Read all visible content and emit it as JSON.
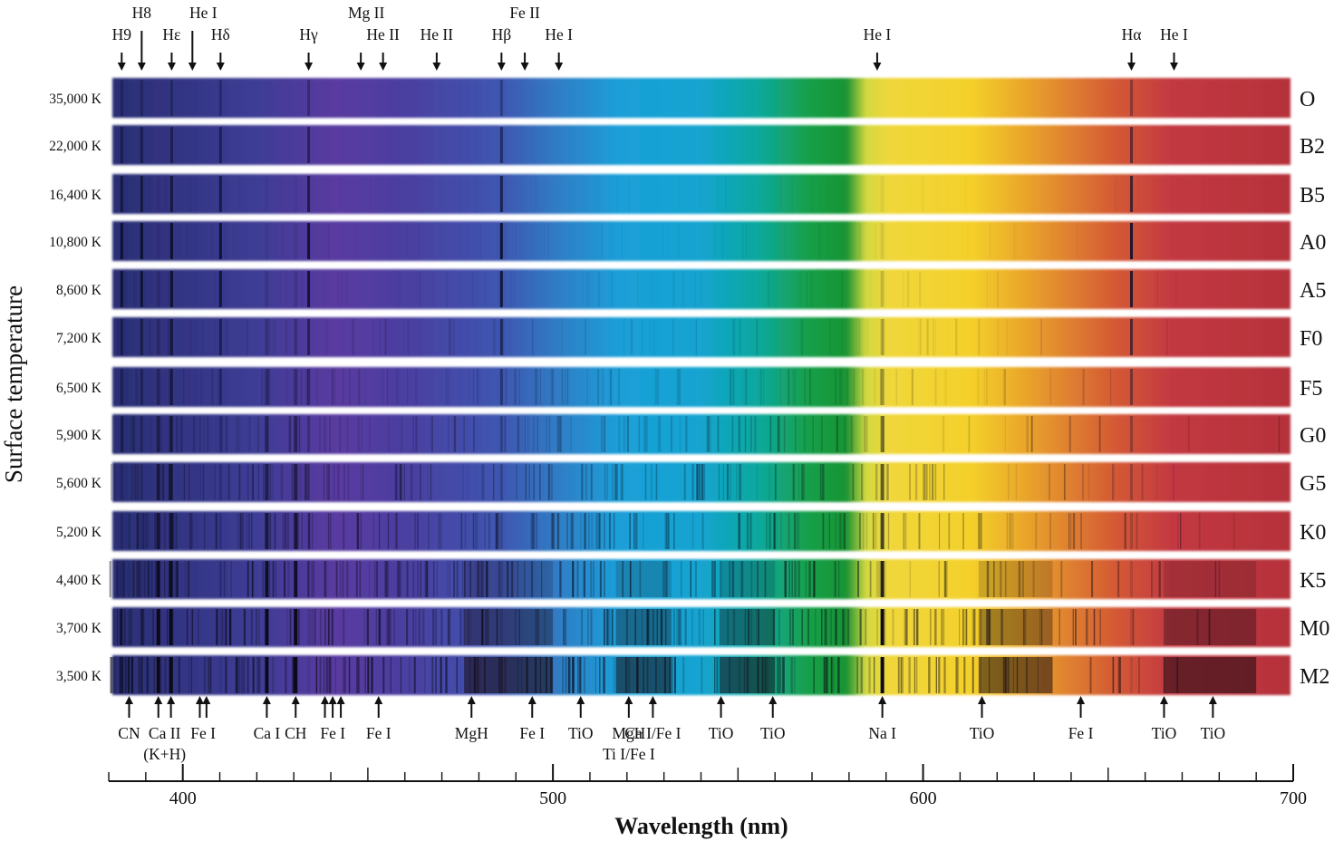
{
  "y_label": "Surface temperature",
  "x_label": "Wavelength (nm)",
  "x_axis": {
    "min": 380,
    "max": 700,
    "major_ticks": [
      400,
      500,
      600,
      700
    ],
    "minor_step": 10
  },
  "spectra": [
    {
      "temperature": "35,000 K",
      "class": "O"
    },
    {
      "temperature": "22,000 K",
      "class": "B2"
    },
    {
      "temperature": "16,400 K",
      "class": "B5"
    },
    {
      "temperature": "10,800 K",
      "class": "A0"
    },
    {
      "temperature": "8,600 K",
      "class": "A5"
    },
    {
      "temperature": "7,200 K",
      "class": "F0"
    },
    {
      "temperature": "6,500 K",
      "class": "F5"
    },
    {
      "temperature": "5,900 K",
      "class": "G0"
    },
    {
      "temperature": "5,600 K",
      "class": "G5"
    },
    {
      "temperature": "5,200 K",
      "class": "K0"
    },
    {
      "temperature": "4,400 K",
      "class": "K5"
    },
    {
      "temperature": "3,700 K",
      "class": "M0"
    },
    {
      "temperature": "3,500 K",
      "class": "M2"
    }
  ],
  "top_lines": [
    {
      "label": "H9",
      "wavelength": 383.5
    },
    {
      "label": "H8",
      "wavelength": 388.9
    },
    {
      "label": "Hε",
      "wavelength": 397.0
    },
    {
      "label": "He I",
      "wavelength": 402.6
    },
    {
      "label": "Hδ",
      "wavelength": 410.2
    },
    {
      "label": "Hγ",
      "wavelength": 434.0
    },
    {
      "label": "Mg II",
      "wavelength": 448.1
    },
    {
      "label": "He II",
      "wavelength": 454.1
    },
    {
      "label": "He II",
      "wavelength": 468.6
    },
    {
      "label": "Hβ",
      "wavelength": 486.1
    },
    {
      "label": "Fe II",
      "wavelength": 492.4
    },
    {
      "label": "He I",
      "wavelength": 501.6
    },
    {
      "label": "He I",
      "wavelength": 587.6
    },
    {
      "label": "Hα",
      "wavelength": 656.3
    },
    {
      "label": "He I",
      "wavelength": 667.8
    }
  ],
  "bottom_lines": [
    {
      "label": "CN",
      "wavelengths": [
        385.5
      ]
    },
    {
      "label": "Ca II (K+H)",
      "wavelengths": [
        393.4,
        396.8
      ]
    },
    {
      "label": "Fe I",
      "wavelengths": [
        404.6,
        406.4
      ]
    },
    {
      "label": "Ca I",
      "wavelengths": [
        422.7
      ]
    },
    {
      "label": "CH",
      "wavelengths": [
        430.5
      ]
    },
    {
      "label": "Fe I",
      "wavelengths": [
        438.4,
        440.5,
        442.7
      ]
    },
    {
      "label": "Fe I",
      "wavelengths": [
        452.9
      ]
    },
    {
      "label": "MgH",
      "wavelengths": [
        478.0
      ]
    },
    {
      "label": "Fe I",
      "wavelengths": [
        494.4
      ]
    },
    {
      "label": "TiO",
      "wavelengths": [
        507.5
      ]
    },
    {
      "label": "MgH",
      "wavelengths": [
        520.5
      ]
    },
    {
      "label": "Ti I/Fe I",
      "wavelengths": []
    },
    {
      "label": "Ca I/Fe I",
      "wavelengths": [
        527.0
      ]
    },
    {
      "label": "TiO",
      "wavelengths": [
        545.4
      ]
    },
    {
      "label": "TiO",
      "wavelengths": [
        559.4
      ]
    },
    {
      "label": "Na I",
      "wavelengths": [
        589.0
      ]
    },
    {
      "label": "TiO",
      "wavelengths": [
        615.9
      ]
    },
    {
      "label": "Fe I",
      "wavelengths": [
        642.6
      ]
    },
    {
      "label": "TiO",
      "wavelengths": [
        665.1
      ]
    },
    {
      "label": "TiO",
      "wavelengths": [
        678.3
      ]
    }
  ]
}
